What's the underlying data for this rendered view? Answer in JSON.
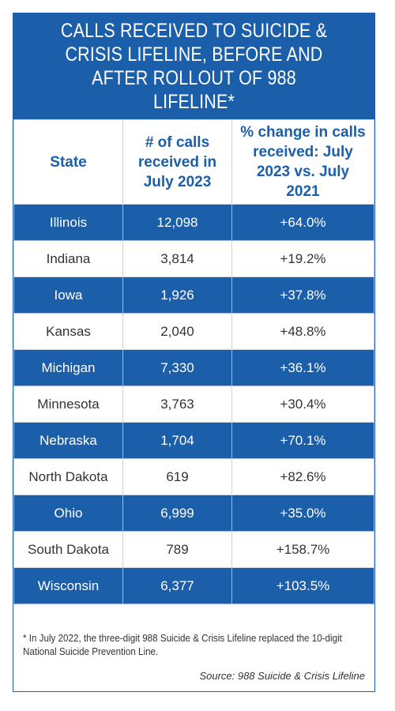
{
  "chart_data": {
    "type": "table",
    "title": "Calls received to Suicide & Crisis Lifeline, before and after rollout of 988 Lifeline*",
    "columns": [
      "State",
      "# of calls received in July 2023",
      "% change in calls received: July 2023 vs. July 2021"
    ],
    "rows": [
      {
        "state": "Illinois",
        "calls": "12,098",
        "change": "+64.0%",
        "calls_value": 12098,
        "change_value": 64.0
      },
      {
        "state": "Indiana",
        "calls": "3,814",
        "change": "+19.2%",
        "calls_value": 3814,
        "change_value": 19.2
      },
      {
        "state": "Iowa",
        "calls": "1,926",
        "change": "+37.8%",
        "calls_value": 1926,
        "change_value": 37.8
      },
      {
        "state": "Kansas",
        "calls": "2,040",
        "change": "+48.8%",
        "calls_value": 2040,
        "change_value": 48.8
      },
      {
        "state": "Michigan",
        "calls": "7,330",
        "change": "+36.1%",
        "calls_value": 7330,
        "change_value": 36.1
      },
      {
        "state": "Minnesota",
        "calls": "3,763",
        "change": "+30.4%",
        "calls_value": 3763,
        "change_value": 30.4
      },
      {
        "state": "Nebraska",
        "calls": "1,704",
        "change": "+70.1%",
        "calls_value": 1704,
        "change_value": 70.1
      },
      {
        "state": "North Dakota",
        "calls": "619",
        "change": "+82.6%",
        "calls_value": 619,
        "change_value": 82.6
      },
      {
        "state": "Ohio",
        "calls": "6,999",
        "change": "+35.0%",
        "calls_value": 6999,
        "change_value": 35.0
      },
      {
        "state": "South Dakota",
        "calls": "789",
        "change": "+158.7%",
        "calls_value": 789,
        "change_value": 158.7
      },
      {
        "state": "Wisconsin",
        "calls": "6,377",
        "change": "+103.5%",
        "calls_value": 6377,
        "change_value": 103.5
      }
    ],
    "footnote": "* In July 2022, the three-digit 988 Suicide & Crisis Lifeline replaced the 10-digit National Suicide Prevention Line.",
    "source": "Source: 988 Suicide & Crisis Lifeline"
  },
  "colors": {
    "header_blue": "#1b5faa",
    "row_alt": "#1b5faa",
    "row_plain": "#ffffff",
    "border": "#c9d3e4"
  }
}
